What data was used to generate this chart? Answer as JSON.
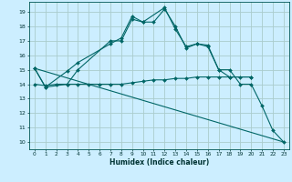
{
  "xlabel": "Humidex (Indice chaleur)",
  "bg_color": "#cceeff",
  "grid_color": "#aacccc",
  "line_color": "#006666",
  "xlim": [
    -0.5,
    23.5
  ],
  "ylim": [
    9.5,
    19.7
  ],
  "yticks": [
    10,
    11,
    12,
    13,
    14,
    15,
    16,
    17,
    18,
    19
  ],
  "xticks": [
    0,
    1,
    2,
    3,
    4,
    5,
    6,
    7,
    8,
    9,
    10,
    11,
    12,
    13,
    14,
    15,
    16,
    17,
    18,
    19,
    20,
    21,
    22,
    23
  ],
  "line1_x": [
    0,
    1,
    3,
    4,
    7,
    8,
    9,
    10,
    11,
    12,
    13,
    14,
    15,
    16,
    17,
    18,
    19,
    20,
    21,
    22,
    23
  ],
  "line1_y": [
    15.1,
    13.8,
    14.0,
    15.0,
    17.0,
    17.0,
    18.5,
    18.3,
    18.3,
    19.2,
    18.0,
    16.5,
    16.8,
    16.7,
    15.0,
    15.0,
    14.0,
    14.0,
    12.5,
    10.8,
    10.0
  ],
  "line2_x": [
    0,
    1,
    3,
    4,
    7,
    8,
    9,
    10,
    12,
    13,
    14,
    15,
    16,
    17,
    18,
    20
  ],
  "line2_y": [
    15.1,
    13.8,
    14.9,
    15.5,
    16.8,
    17.2,
    18.7,
    18.3,
    19.3,
    17.8,
    16.6,
    16.8,
    16.6,
    15.0,
    14.5,
    14.5
  ],
  "line3_x": [
    0,
    1,
    2,
    3,
    4,
    5,
    6,
    7,
    8,
    9,
    10,
    11,
    12,
    13,
    14,
    15,
    16,
    17,
    18,
    19,
    20
  ],
  "line3_y": [
    14.0,
    13.9,
    14.0,
    14.0,
    14.0,
    14.0,
    14.0,
    14.0,
    14.0,
    14.1,
    14.2,
    14.3,
    14.3,
    14.4,
    14.4,
    14.5,
    14.5,
    14.5,
    14.5,
    14.5,
    14.5
  ],
  "line4_x": [
    0,
    23
  ],
  "line4_y": [
    15.1,
    10.0
  ]
}
